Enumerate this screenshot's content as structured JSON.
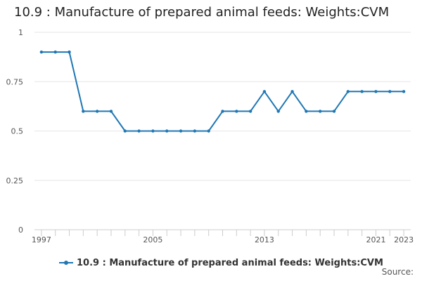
{
  "chart_data": {
    "type": "line",
    "title": "10.9 : Manufacture of prepared animal feeds: Weights:CVM",
    "xlabel": "",
    "ylabel": "",
    "x": [
      1997,
      1998,
      1999,
      2000,
      2001,
      2002,
      2003,
      2004,
      2005,
      2006,
      2007,
      2008,
      2009,
      2010,
      2011,
      2012,
      2013,
      2014,
      2015,
      2016,
      2017,
      2018,
      2019,
      2020,
      2021,
      2022,
      2023
    ],
    "series": [
      {
        "name": "10.9 : Manufacture of prepared animal feeds: Weights:CVM",
        "color": "#1f77b4",
        "values": [
          0.9,
          0.9,
          0.9,
          0.6,
          0.6,
          0.6,
          0.5,
          0.5,
          0.5,
          0.5,
          0.5,
          0.5,
          0.5,
          0.6,
          0.6,
          0.6,
          0.7,
          0.6,
          0.7,
          0.6,
          0.6,
          0.6,
          0.7,
          0.7,
          0.7,
          0.7,
          0.7
        ]
      }
    ],
    "ylim": [
      0,
      1
    ],
    "yticks": [
      0,
      0.25,
      0.5,
      0.75,
      1
    ],
    "ytick_labels": [
      "0",
      "0.25",
      "0.5",
      "0.75",
      "1"
    ],
    "xticks_labeled": [
      1997,
      2005,
      2013,
      2021,
      2023
    ],
    "xtick_labels": [
      "1997",
      "2005",
      "2013",
      "2021",
      "2023"
    ],
    "grid": "horizontal",
    "legend": "bottom",
    "source_label": "Source:"
  }
}
